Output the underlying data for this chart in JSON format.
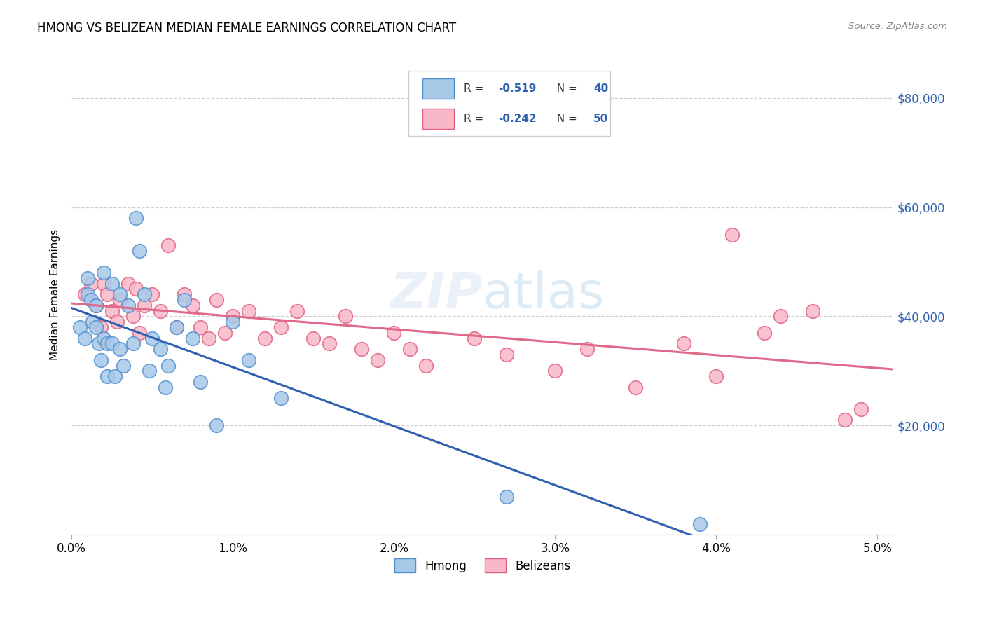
{
  "title": "HMONG VS BELIZEAN MEDIAN FEMALE EARNINGS CORRELATION CHART",
  "source": "Source: ZipAtlas.com",
  "ylabel": "Median Female Earnings",
  "xlim": [
    0.0,
    0.051
  ],
  "ylim": [
    0,
    88000
  ],
  "yticks": [
    0,
    20000,
    40000,
    60000,
    80000
  ],
  "xticks": [
    0.0,
    0.01,
    0.02,
    0.03,
    0.04,
    0.05
  ],
  "xtick_labels": [
    "0.0%",
    "1.0%",
    "2.0%",
    "3.0%",
    "4.0%",
    "5.0%"
  ],
  "hmong_fill": "#a8c8e8",
  "hmong_edge": "#5090d0",
  "belizean_fill": "#f8b8c8",
  "belizean_edge": "#e06080",
  "hmong_line_color": "#3060b0",
  "belizean_line_color": "#e06888",
  "grid_color": "#c8c8d8",
  "hmong_x": [
    0.0005,
    0.0008,
    0.001,
    0.001,
    0.0012,
    0.0013,
    0.0015,
    0.0015,
    0.0017,
    0.0018,
    0.002,
    0.002,
    0.0022,
    0.0022,
    0.0025,
    0.0025,
    0.0027,
    0.003,
    0.003,
    0.0032,
    0.0035,
    0.0038,
    0.004,
    0.0042,
    0.0045,
    0.0048,
    0.005,
    0.0055,
    0.0058,
    0.006,
    0.0065,
    0.007,
    0.0075,
    0.008,
    0.009,
    0.01,
    0.011,
    0.013,
    0.027,
    0.039
  ],
  "hmong_y": [
    38000,
    36000,
    47000,
    44000,
    43000,
    39000,
    42000,
    38000,
    35000,
    32000,
    48000,
    36000,
    35000,
    29000,
    46000,
    35000,
    29000,
    44000,
    34000,
    31000,
    42000,
    35000,
    58000,
    52000,
    44000,
    30000,
    36000,
    34000,
    27000,
    31000,
    38000,
    43000,
    36000,
    28000,
    20000,
    39000,
    32000,
    25000,
    7000,
    2000
  ],
  "belizean_x": [
    0.0008,
    0.0012,
    0.0015,
    0.0018,
    0.002,
    0.0022,
    0.0025,
    0.0028,
    0.003,
    0.0035,
    0.0038,
    0.004,
    0.0042,
    0.0045,
    0.005,
    0.0055,
    0.006,
    0.0065,
    0.007,
    0.0075,
    0.008,
    0.0085,
    0.009,
    0.0095,
    0.01,
    0.011,
    0.012,
    0.013,
    0.014,
    0.015,
    0.016,
    0.017,
    0.018,
    0.019,
    0.02,
    0.021,
    0.022,
    0.025,
    0.027,
    0.03,
    0.032,
    0.035,
    0.038,
    0.04,
    0.041,
    0.043,
    0.044,
    0.046,
    0.048,
    0.049
  ],
  "belizean_y": [
    44000,
    46000,
    42000,
    38000,
    46000,
    44000,
    41000,
    39000,
    43000,
    46000,
    40000,
    45000,
    37000,
    42000,
    44000,
    41000,
    53000,
    38000,
    44000,
    42000,
    38000,
    36000,
    43000,
    37000,
    40000,
    41000,
    36000,
    38000,
    41000,
    36000,
    35000,
    40000,
    34000,
    32000,
    37000,
    34000,
    31000,
    36000,
    33000,
    30000,
    34000,
    27000,
    35000,
    29000,
    55000,
    37000,
    40000,
    41000,
    21000,
    23000
  ]
}
